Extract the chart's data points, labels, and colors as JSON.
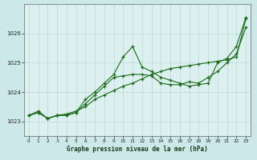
{
  "xlabel": "Graphe pression niveau de la mer (hPa)",
  "bg_color": "#cce8e8",
  "grid_color": "#b8d8d8",
  "line_color": "#1a6b1a",
  "marker_color": "#1a6b1a",
  "axes_bg": "#ddf0f0",
  "ylim": [
    1022.5,
    1027.0
  ],
  "xlim": [
    -0.5,
    23.5
  ],
  "yticks": [
    1023,
    1024,
    1025,
    1026
  ],
  "xticks": [
    0,
    1,
    2,
    3,
    4,
    5,
    6,
    7,
    8,
    9,
    10,
    11,
    12,
    13,
    14,
    15,
    16,
    17,
    18,
    19,
    20,
    21,
    22,
    23
  ],
  "series": [
    [
      1023.2,
      1023.35,
      1023.1,
      1023.2,
      1023.25,
      1023.35,
      1023.5,
      1023.75,
      1023.9,
      1024.05,
      1024.2,
      1024.3,
      1024.45,
      1024.6,
      1024.7,
      1024.8,
      1024.85,
      1024.9,
      1024.95,
      1025.0,
      1025.05,
      1025.1,
      1025.2,
      1026.5
    ],
    [
      1023.2,
      1023.3,
      1023.1,
      1023.2,
      1023.2,
      1023.3,
      1023.75,
      1024.0,
      1024.3,
      1024.6,
      1025.2,
      1025.55,
      1024.85,
      1024.7,
      1024.5,
      1024.4,
      1024.3,
      1024.2,
      1024.25,
      1024.3,
      1025.0,
      1025.15,
      1025.55,
      1026.55
    ],
    [
      1023.2,
      1023.3,
      1023.1,
      1023.2,
      1023.22,
      1023.3,
      1023.6,
      1023.9,
      1024.2,
      1024.5,
      1024.55,
      1024.6,
      1024.6,
      1024.55,
      1024.3,
      1024.25,
      1024.25,
      1024.35,
      1024.3,
      1024.5,
      1024.7,
      1025.0,
      1025.3,
      1026.2
    ]
  ]
}
